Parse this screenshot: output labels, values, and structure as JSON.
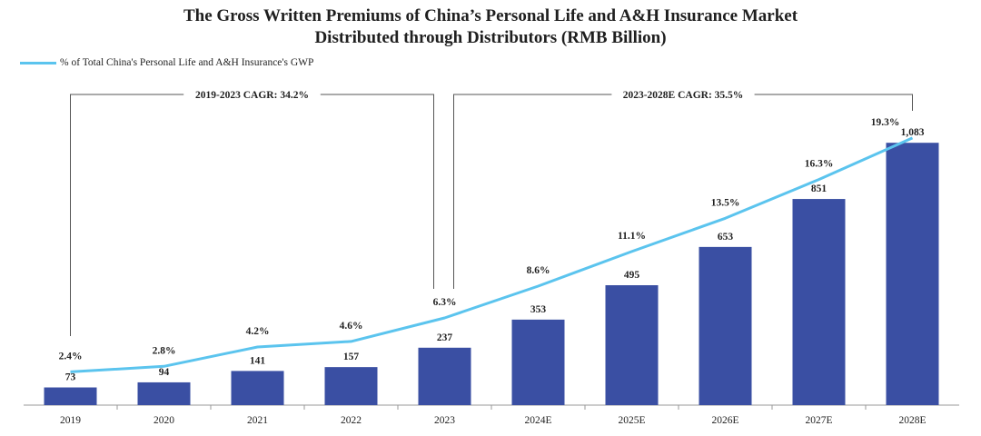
{
  "title": {
    "line1": "The Gross Written Premiums of China’s Personal Life and A&H Insurance Market",
    "line2": "Distributed through Distributors (RMB Billion)"
  },
  "legend": {
    "line_label": "% of Total China's Personal Life and A&H Insurance's GWP"
  },
  "colors": {
    "bar": "#3a4fa3",
    "line": "#5bc4ee",
    "bracket": "#555555"
  },
  "chart_data": {
    "type": "bar",
    "title": "The Gross Written Premiums of China’s Personal Life and A&H Insurance Market Distributed through Distributors (RMB Billion)",
    "xlabel": "",
    "ylabel": "",
    "categories": [
      "2019",
      "2020",
      "2021",
      "2022",
      "2023",
      "2024E",
      "2025E",
      "2026E",
      "2027E",
      "2028E"
    ],
    "series": [
      {
        "name": "Gross Written Premiums (RMB Billion)",
        "type": "bar",
        "values": [
          73,
          94,
          141,
          157,
          237,
          353,
          495,
          653,
          851,
          1083
        ],
        "labels": [
          "73",
          "94",
          "141",
          "157",
          "237",
          "353",
          "495",
          "653",
          "851",
          "1,083"
        ]
      },
      {
        "name": "% of Total China's Personal Life and A&H Insurance's GWP",
        "type": "line",
        "values": [
          2.4,
          2.8,
          4.2,
          4.6,
          6.3,
          8.6,
          11.1,
          13.5,
          16.3,
          19.3
        ],
        "labels": [
          "2.4%",
          "2.8%",
          "4.2%",
          "4.6%",
          "6.3%",
          "8.6%",
          "11.1%",
          "13.5%",
          "16.3%",
          "19.3%"
        ]
      }
    ],
    "ylim": [
      0,
      1200
    ],
    "ylim_secondary": [
      0,
      21
    ],
    "annotations": [
      {
        "text": "2019-2023 CAGR: 34.2%",
        "from": "2019",
        "to": "2023"
      },
      {
        "text": "2023-2028E CAGR: 35.5%",
        "from": "2023",
        "to": "2028E"
      }
    ],
    "legend_position": "top-left"
  }
}
